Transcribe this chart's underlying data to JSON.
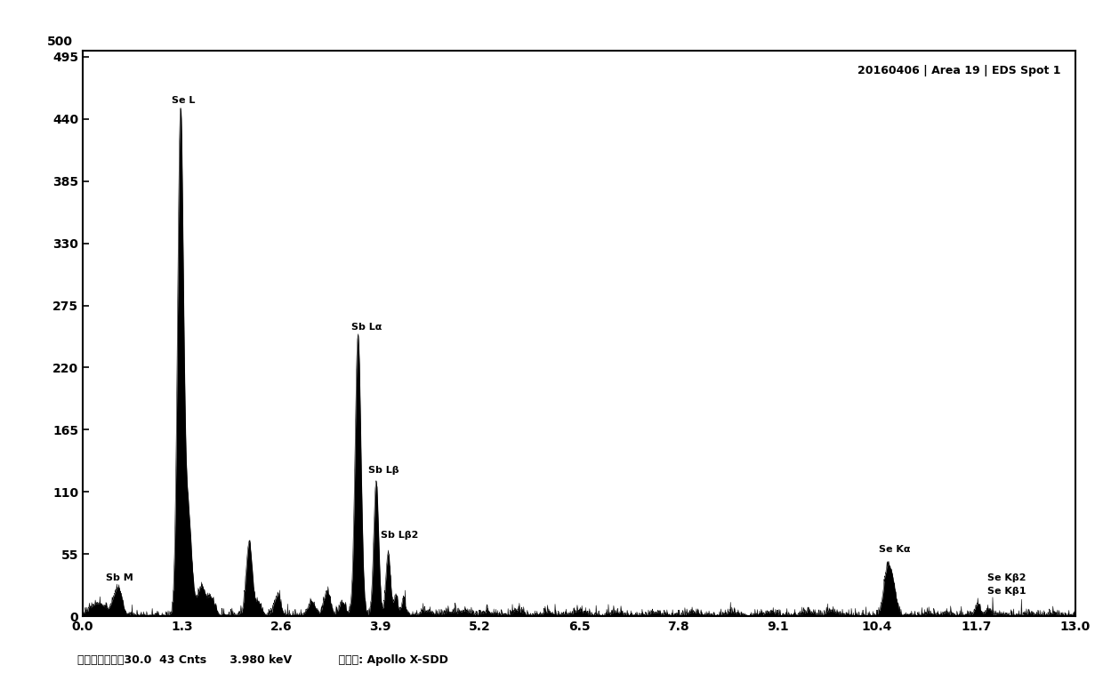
{
  "title": "20160406 | Area 19 | EDS Spot 1",
  "xlim": [
    0.0,
    13.0
  ],
  "ylim": [
    0,
    500
  ],
  "yticks": [
    0,
    55,
    110,
    165,
    220,
    275,
    330,
    385,
    440,
    495
  ],
  "ytick_labels": [
    "0",
    "55",
    "110",
    "165",
    "220",
    "275",
    "330",
    "385",
    "440",
    "495"
  ],
  "xticks": [
    0.0,
    1.3,
    2.6,
    3.9,
    5.2,
    6.5,
    7.8,
    9.1,
    10.4,
    11.7,
    13.0
  ],
  "xtick_labels": [
    "0.0",
    "1.3",
    "2.6",
    "3.9",
    "5.2",
    "6.5",
    "7.8",
    "9.1",
    "10.4",
    "11.7",
    "13.0"
  ],
  "background_color": "#ffffff",
  "line_color": "#000000",
  "footer_text": "活时间（秒）：30.0  43 Cnts      3.980 keV            探测器： Apollo X-SDD",
  "annotation_fontsize": 8,
  "title_fontsize": 9,
  "tick_fontsize": 10
}
